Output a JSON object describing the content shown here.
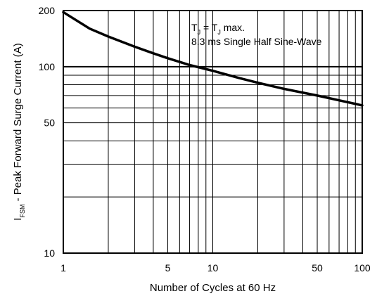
{
  "chart_data": {
    "type": "line",
    "title": "",
    "xlabel": "Number of Cycles at 60 Hz",
    "ylabel": {
      "symbol": "I",
      "subscript": "FSM",
      "text": " - Peak Forward Surge Current (A)"
    },
    "x_scale": "log",
    "y_scale": "log",
    "xlim": [
      1,
      100
    ],
    "ylim": [
      10,
      200
    ],
    "grid": true,
    "x_ticks": [
      1,
      5,
      10,
      50,
      100
    ],
    "x_tick_labels": [
      "1",
      "5",
      "10",
      "50",
      "100"
    ],
    "y_ticks": [
      10,
      50,
      100,
      200
    ],
    "y_tick_labels": [
      "10",
      "50",
      "100",
      "200"
    ],
    "annotation": {
      "line1_parts": [
        "T",
        "J",
        " = T",
        "J",
        " max."
      ],
      "line2": "8.3 ms Single Half Sine-Wave"
    },
    "series": [
      {
        "x": [
          1,
          1.5,
          2,
          3,
          4,
          5,
          7,
          10,
          15,
          20,
          30,
          50,
          70,
          100
        ],
        "y": [
          196,
          160,
          145,
          128,
          118,
          111,
          102,
          95,
          87,
          82,
          76,
          70,
          66,
          62
        ]
      }
    ]
  }
}
